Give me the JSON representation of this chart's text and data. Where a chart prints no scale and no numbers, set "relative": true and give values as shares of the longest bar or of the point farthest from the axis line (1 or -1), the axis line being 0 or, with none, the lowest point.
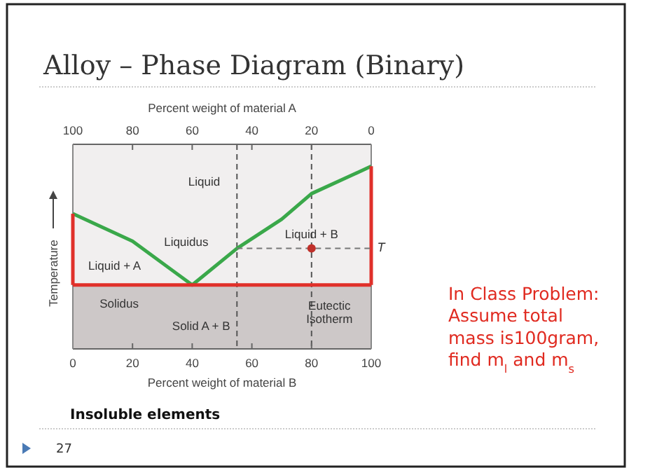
{
  "chart_data": {
    "type": "line",
    "title": "Alloy – Phase Diagram (Binary)",
    "xlabel": "Percent weight of material B",
    "x2label": "Percent weight of material A",
    "ylabel": "Temperature",
    "relative": true,
    "xlim": [
      0,
      100
    ],
    "xticks": [
      0,
      20,
      40,
      60,
      80,
      100
    ],
    "x2lim": [
      100,
      0
    ],
    "x2ticks": [
      100,
      80,
      60,
      40,
      20,
      0
    ],
    "series": [
      {
        "color": "#3aa84a",
        "x": [
          0,
          20,
          40,
          55,
          70,
          80,
          100
        ],
        "values": [
          0.74,
          0.59,
          0.35,
          0.55,
          0.71,
          0.85,
          1
        ]
      },
      {
        "color": "#e0302a",
        "x": [
          0,
          0
        ],
        "values": [
          0.74,
          0.35
        ]
      },
      {
        "color": "#e0302a",
        "x": [
          0,
          100
        ],
        "values": [
          0.35,
          0.35
        ]
      },
      {
        "color": "#e0302a",
        "x": [
          100,
          100
        ],
        "values": [
          0.35,
          1
        ]
      },
      {
        "color": "#777777",
        "line_style": "dashed",
        "x": [
          55,
          100
        ],
        "values": [
          0.55,
          0.55
        ]
      },
      {
        "type": "scatter",
        "color": "#c0302a",
        "marker": "circle",
        "x": [
          80
        ],
        "values": [
          0.55
        ]
      }
    ],
    "ref_lines": [
      {
        "axis": "x",
        "value": 55,
        "color": "#555555",
        "line_style": "dashed"
      },
      {
        "axis": "x",
        "value": 80,
        "color": "#555555",
        "line_style": "dashed"
      }
    ],
    "bands": [
      {
        "axis": "y",
        "from": 0,
        "to": 0.35,
        "color": "#cdc8c8"
      }
    ],
    "annotations": [
      "Liquid",
      "Liquidus",
      "Liquid + A",
      "Liquid + B",
      "Solidus",
      "Solid A + B",
      "Eutectic Isotherm",
      {
        "text": "T",
        "x": 100,
        "y": 0.55
      },
      "Insoluble elements",
      "In Class Problem: Assume total mass is100gram, find m$_{l}$ and m$_{s}$",
      "27"
    ]
  }
}
